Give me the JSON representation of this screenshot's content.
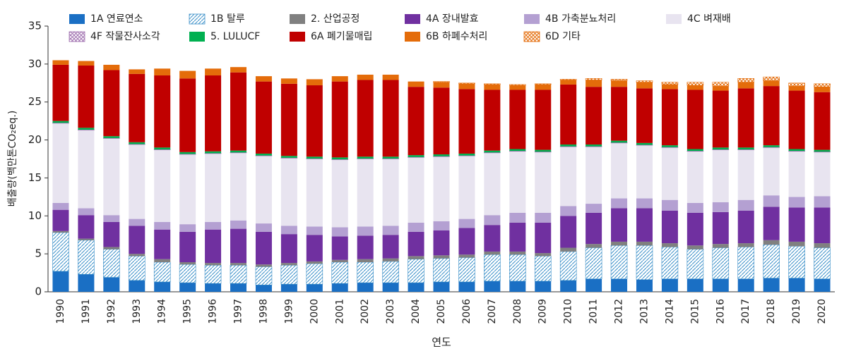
{
  "chart_data": {
    "type": "stacked_bar",
    "xlabel": "연도",
    "ylabel": "배출량(백만톤CO₂eq.)",
    "categories": [
      "1990",
      "1991",
      "1992",
      "1993",
      "1994",
      "1995",
      "1996",
      "1997",
      "1998",
      "1999",
      "2000",
      "2001",
      "2002",
      "2003",
      "2004",
      "2005",
      "2006",
      "2007",
      "2008",
      "2009",
      "2010",
      "2011",
      "2012",
      "2013",
      "2014",
      "2015",
      "2016",
      "2017",
      "2018",
      "2019",
      "2020"
    ],
    "ylim": [
      0,
      35
    ],
    "yticks": [
      0,
      5,
      10,
      15,
      20,
      25,
      30,
      35
    ],
    "grid": false,
    "legend": "top",
    "series": [
      {
        "name": "1A 연료연소",
        "color": "#1a6fc4",
        "values": [
          2.7,
          2.3,
          1.9,
          1.5,
          1.3,
          1.2,
          1.1,
          1.1,
          0.9,
          1.0,
          1.0,
          1.1,
          1.2,
          1.2,
          1.2,
          1.3,
          1.3,
          1.4,
          1.4,
          1.4,
          1.5,
          1.7,
          1.7,
          1.6,
          1.7,
          1.7,
          1.7,
          1.7,
          1.8,
          1.8,
          1.7
        ]
      },
      {
        "name": "1B 탈루",
        "color": "#3a8fc8",
        "hatch": "diagonal",
        "values": [
          5.1,
          4.5,
          3.7,
          3.2,
          2.6,
          2.4,
          2.4,
          2.4,
          2.4,
          2.5,
          2.7,
          2.8,
          2.7,
          2.8,
          3.1,
          3.1,
          3.2,
          3.5,
          3.5,
          3.3,
          3.8,
          4.1,
          4.4,
          4.5,
          4.2,
          3.9,
          4.1,
          4.2,
          4.4,
          4.2,
          4.1
        ]
      },
      {
        "name": "2. 산업공정",
        "color": "#808080",
        "values": [
          0.2,
          0.2,
          0.3,
          0.3,
          0.4,
          0.3,
          0.3,
          0.3,
          0.3,
          0.3,
          0.3,
          0.3,
          0.4,
          0.4,
          0.4,
          0.4,
          0.4,
          0.4,
          0.4,
          0.4,
          0.5,
          0.5,
          0.5,
          0.5,
          0.5,
          0.5,
          0.5,
          0.5,
          0.6,
          0.6,
          0.6
        ]
      },
      {
        "name": "4A 장내발효",
        "color": "#7030a0",
        "values": [
          2.8,
          3.1,
          3.3,
          3.7,
          3.9,
          4.0,
          4.4,
          4.5,
          4.3,
          3.8,
          3.5,
          3.1,
          3.1,
          3.1,
          3.2,
          3.3,
          3.5,
          3.5,
          3.8,
          4.0,
          4.2,
          4.1,
          4.4,
          4.4,
          4.3,
          4.3,
          4.2,
          4.3,
          4.4,
          4.5,
          4.7
        ]
      },
      {
        "name": "4B 가축분뇨처리",
        "color": "#b4a0d2",
        "values": [
          0.9,
          0.9,
          0.9,
          0.9,
          1.0,
          1.0,
          1.0,
          1.1,
          1.1,
          1.1,
          1.1,
          1.2,
          1.2,
          1.2,
          1.2,
          1.2,
          1.2,
          1.3,
          1.3,
          1.3,
          1.3,
          1.2,
          1.3,
          1.3,
          1.4,
          1.3,
          1.3,
          1.4,
          1.5,
          1.4,
          1.5
        ]
      },
      {
        "name": "4C 벼재배",
        "color": "#e8e4f0",
        "values": [
          10.5,
          10.3,
          10.1,
          9.8,
          9.5,
          9.2,
          9.0,
          8.9,
          8.9,
          8.9,
          8.9,
          8.9,
          8.9,
          8.8,
          8.6,
          8.5,
          8.3,
          8.2,
          8.1,
          8.0,
          7.8,
          7.5,
          7.3,
          7.0,
          6.9,
          6.8,
          6.9,
          6.6,
          6.3,
          6.0,
          5.8
        ]
      },
      {
        "name": "4F 작물잔사소각",
        "color": "#a070b0",
        "hatch": "cross",
        "values": [
          0.05,
          0.05,
          0.05,
          0.05,
          0.05,
          0.05,
          0.05,
          0.05,
          0.05,
          0.05,
          0.05,
          0.05,
          0.05,
          0.05,
          0.05,
          0.05,
          0.05,
          0.05,
          0.05,
          0.05,
          0.05,
          0.05,
          0.05,
          0.05,
          0.05,
          0.05,
          0.05,
          0.05,
          0.05,
          0.05,
          0.05
        ]
      },
      {
        "name": "5. LULUCF",
        "color": "#00b050",
        "values": [
          0.25,
          0.25,
          0.25,
          0.25,
          0.25,
          0.25,
          0.25,
          0.25,
          0.25,
          0.25,
          0.25,
          0.25,
          0.25,
          0.25,
          0.25,
          0.25,
          0.25,
          0.25,
          0.25,
          0.25,
          0.25,
          0.25,
          0.25,
          0.25,
          0.25,
          0.25,
          0.25,
          0.25,
          0.25,
          0.25,
          0.25
        ]
      },
      {
        "name": "6A 폐기물매립",
        "color": "#c00000",
        "values": [
          7.4,
          8.2,
          8.7,
          9.0,
          9.5,
          9.7,
          10.0,
          10.3,
          9.5,
          9.5,
          9.4,
          10.0,
          10.1,
          10.1,
          9.0,
          8.8,
          8.5,
          8.0,
          7.8,
          7.9,
          7.9,
          7.6,
          7.1,
          7.2,
          7.4,
          7.8,
          7.5,
          7.8,
          7.8,
          7.7,
          7.6
        ]
      },
      {
        "name": "6B 하폐수처리",
        "color": "#e46c0a",
        "values": [
          0.6,
          0.6,
          0.7,
          0.6,
          0.9,
          1.0,
          0.9,
          0.7,
          0.7,
          0.7,
          0.8,
          0.7,
          0.7,
          0.7,
          0.7,
          0.7,
          0.7,
          0.7,
          0.6,
          0.7,
          0.6,
          0.9,
          0.8,
          0.8,
          0.6,
          0.6,
          0.6,
          0.8,
          0.7,
          0.6,
          0.7
        ]
      },
      {
        "name": "6D 기타",
        "color": "#e46c0a",
        "hatch": "cross",
        "values": [
          0,
          0,
          0,
          0,
          0,
          0,
          0,
          0,
          0,
          0,
          0,
          0,
          0,
          0,
          0,
          0.1,
          0.1,
          0.1,
          0.1,
          0.1,
          0.1,
          0.2,
          0.2,
          0.2,
          0.3,
          0.4,
          0.5,
          0.5,
          0.5,
          0.4,
          0.4
        ]
      }
    ]
  }
}
